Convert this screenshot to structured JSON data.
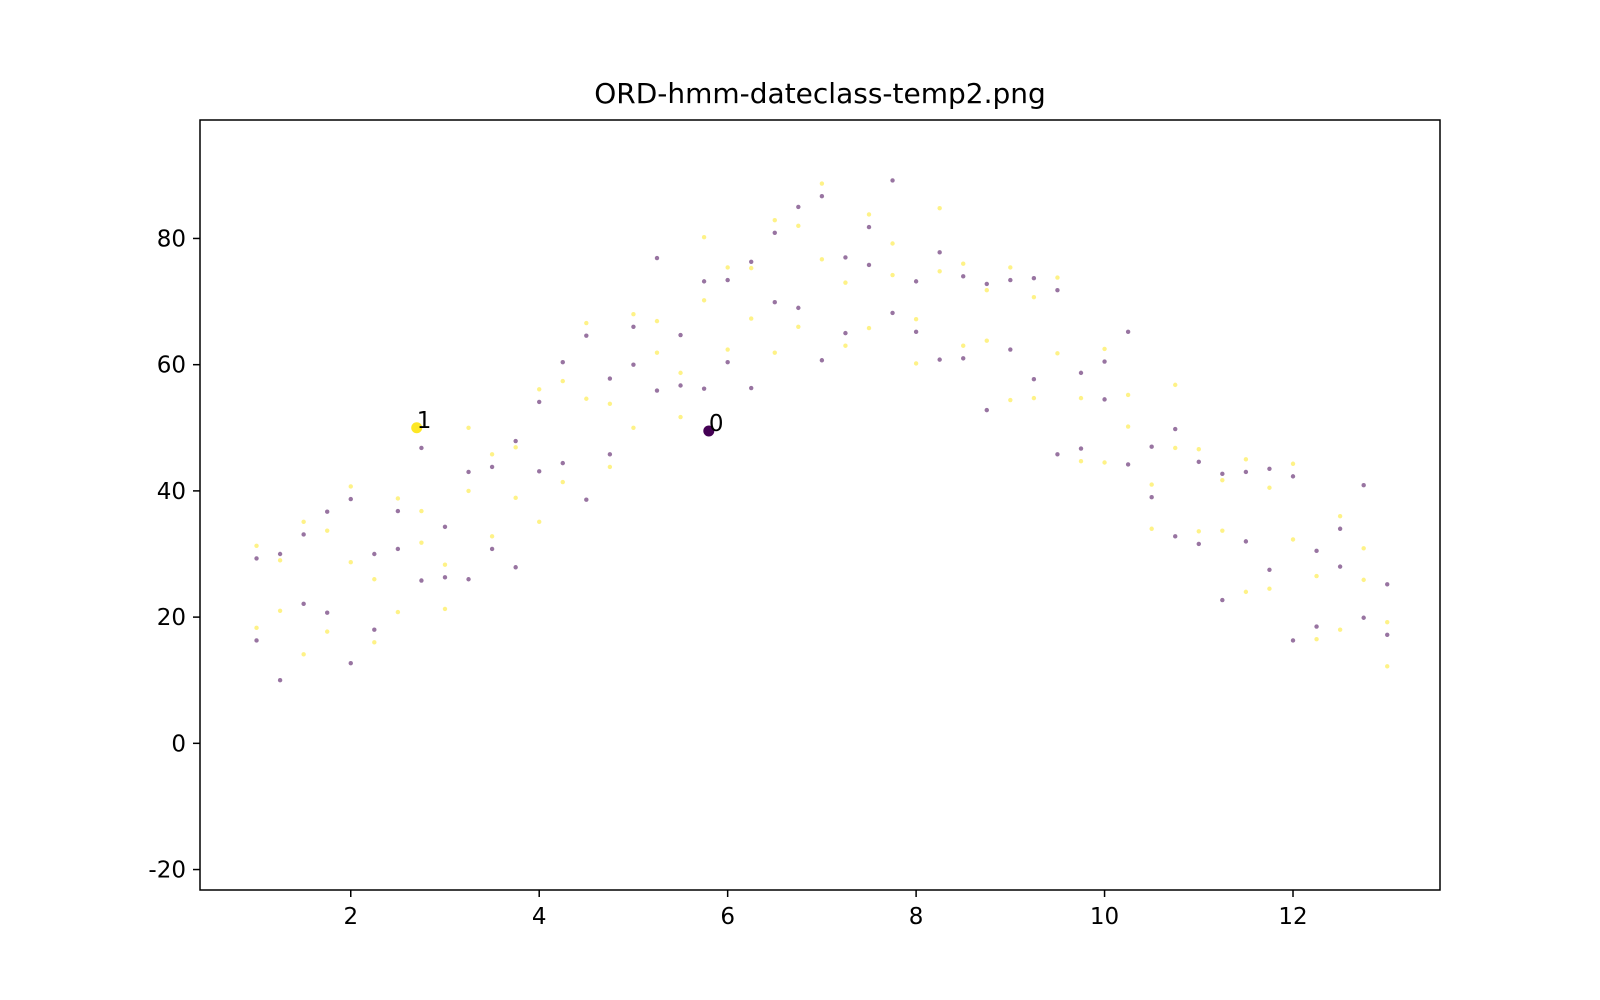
{
  "chart_data": {
    "type": "scatter",
    "title": "ORD-hmm-dateclass-temp2.png",
    "xlim": [
      0.4,
      13.56
    ],
    "ylim": [
      -23.24,
      98.77
    ],
    "xticks": [
      2,
      4,
      6,
      8,
      10,
      12
    ],
    "yticks": [
      -20,
      0,
      20,
      40,
      60,
      80
    ],
    "grid": false,
    "series": [
      {
        "color": "#fde725",
        "x": [
          1,
          1.25,
          1.5,
          1.75,
          2,
          2.25,
          2.5,
          2.75,
          3,
          3.25,
          3.5,
          3.75,
          4,
          4.25,
          4.5,
          4.75,
          5,
          5.25,
          5.5,
          5.75,
          6,
          6.25,
          6.5,
          6.75,
          7,
          7.25,
          7.5,
          7.75,
          8,
          8.25,
          8.5,
          8.75,
          9,
          9.25,
          9.5,
          9.75,
          10,
          10.25,
          10.5,
          10.75,
          11,
          11.25,
          11.5,
          11.75,
          12,
          12.25,
          12.5,
          12.75,
          13,
          1,
          1.25,
          1.5,
          1.75,
          2,
          2.25,
          2.5,
          2.75,
          3,
          3.25,
          3.5,
          3.75,
          4,
          4.25,
          4.5,
          4.75,
          5,
          5.25,
          5.5,
          5.75,
          6,
          6.25,
          6.5,
          6.75,
          7,
          7.25,
          7.5,
          7.75,
          8,
          8.25,
          8.5,
          8.75,
          9,
          9.25,
          9.5,
          9.75,
          10,
          10.25,
          10.5,
          10.75,
          11,
          11.25,
          11.5,
          11.75,
          12,
          12.25,
          12.5,
          12.75,
          13
        ],
        "values": [
          31.3,
          21,
          35.1,
          17.7,
          28.7,
          16,
          38.8,
          31.8,
          28.3,
          50,
          45.8,
          38.9,
          56.1,
          41.4,
          54.6,
          43.8,
          68,
          61.9,
          58.7,
          80.2,
          75.4,
          67.3,
          82.9,
          66,
          76.7,
          63,
          83.8,
          74.2,
          67.2,
          84.8,
          76,
          63.8,
          75.4,
          54.7,
          61.8,
          44.7,
          62.5,
          50.2,
          41,
          56.8,
          46.6,
          33.7,
          45,
          24.5,
          32.3,
          16.5,
          36,
          25.9,
          19.2,
          18.3,
          29,
          14.1,
          33.7,
          40.7,
          26,
          20.8,
          36.8,
          21.3,
          40,
          32.8,
          46.9,
          35.1,
          57.4,
          66.6,
          53.8,
          50,
          66.9,
          51.7,
          70.2,
          62.4,
          75.3,
          61.9,
          82,
          88.7,
          73,
          65.8,
          79.2,
          60.2,
          74.8,
          63,
          71.8,
          54.4,
          70.7,
          73.8,
          54.7,
          44.5,
          55.2,
          34,
          46.8,
          33.6,
          41.7,
          24,
          40.5,
          44.3,
          26.5,
          18,
          30.9,
          12.2
        ]
      },
      {
        "color": "#440154",
        "x": [
          1,
          1.25,
          1.5,
          1.75,
          2,
          2.25,
          2.5,
          2.75,
          3,
          3.25,
          3.5,
          3.75,
          4,
          4.25,
          4.5,
          4.75,
          5,
          5.25,
          5.5,
          5.75,
          6,
          6.25,
          6.5,
          6.75,
          7,
          7.25,
          7.5,
          7.75,
          8,
          8.25,
          8.5,
          8.75,
          9,
          9.25,
          9.5,
          9.75,
          10,
          10.25,
          10.5,
          10.75,
          11,
          11.25,
          11.5,
          11.75,
          12,
          12.25,
          12.5,
          12.75,
          13,
          1,
          1.25,
          1.5,
          1.75,
          2,
          2.25,
          2.5,
          2.75,
          3,
          3.25,
          3.5,
          3.75,
          4,
          4.25,
          4.5,
          4.75,
          5,
          5.25,
          5.5,
          5.75,
          6,
          6.25,
          6.5,
          6.75,
          7,
          7.25,
          7.5,
          7.75,
          8,
          8.25,
          8.5,
          8.75,
          9,
          9.25,
          9.5,
          9.75,
          10,
          10.25,
          10.5,
          10.75,
          11,
          11.25,
          11.5,
          11.75,
          12,
          12.25,
          12.5,
          12.75,
          13
        ],
        "values": [
          16.3,
          30,
          22.1,
          36.7,
          12.7,
          30,
          36.8,
          25.8,
          34.3,
          26,
          30.8,
          47.9,
          43.1,
          60.4,
          38.6,
          57.8,
          66,
          55.9,
          64.7,
          56.2,
          60.4,
          76.3,
          69.9,
          85,
          60.7,
          77,
          81.8,
          68.2,
          73.2,
          60.8,
          61,
          72.8,
          62.4,
          73.7,
          45.8,
          58.7,
          60.5,
          44.2,
          47,
          32.8,
          31.6,
          42.7,
          32,
          43.5,
          16.3,
          30.5,
          34,
          19.9,
          25.2,
          29.3,
          10,
          33.1,
          20.7,
          38.7,
          18,
          30.8,
          46.8,
          26.3,
          43,
          43.8,
          27.9,
          54.1,
          44.4,
          64.6,
          45.8,
          60,
          76.9,
          56.7,
          73.2,
          73.4,
          56.3,
          80.9,
          69,
          86.7,
          65,
          75.8,
          89.2,
          65.2,
          77.8,
          74,
          52.8,
          73.4,
          57.7,
          71.8,
          46.7,
          54.5,
          65.2,
          39,
          49.8,
          44.6,
          22.7,
          43,
          27.5,
          42.3,
          18.5,
          28,
          40.9,
          17.2
        ]
      }
    ],
    "annotations": [
      {
        "text": "1",
        "x": 2.7,
        "y": 50,
        "color": "#fde725"
      },
      {
        "text": "0",
        "x": 5.8,
        "y": 49.5,
        "color": "#440154"
      }
    ]
  }
}
